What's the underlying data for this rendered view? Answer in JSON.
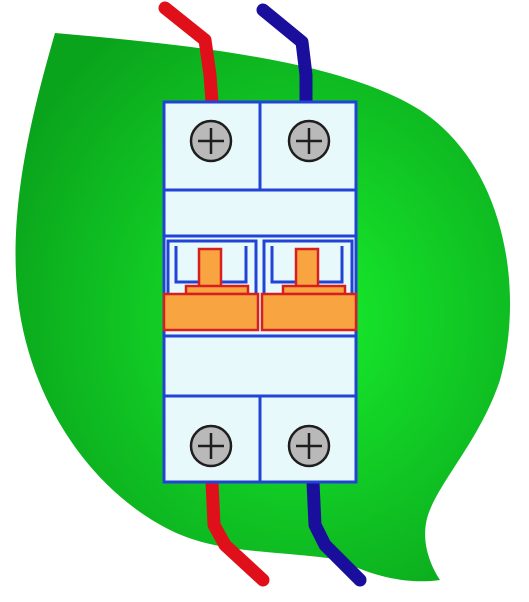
{
  "colors": {
    "background": "#ffffff",
    "leaf_light": "#18ee2c",
    "leaf_dark": "#0aa31c",
    "breaker_body": "#e8f9fb",
    "breaker_outline": "#2144d6",
    "screw_fill": "#b9b9b9",
    "screw_outline": "#1e1e1e",
    "switch_fill": "#f7a441",
    "switch_outline": "#d62020",
    "wire_phase": "#e0101a",
    "wire_neutral": "#1a0e9c"
  },
  "icons": {
    "leaf": "leaf-icon",
    "breaker": "circuit-breaker-icon",
    "screw": "screw-terminal-icon",
    "switch": "toggle-lever-icon",
    "wire": "wire-icon"
  },
  "breaker": {
    "poles": 2,
    "switch_state": "on"
  }
}
